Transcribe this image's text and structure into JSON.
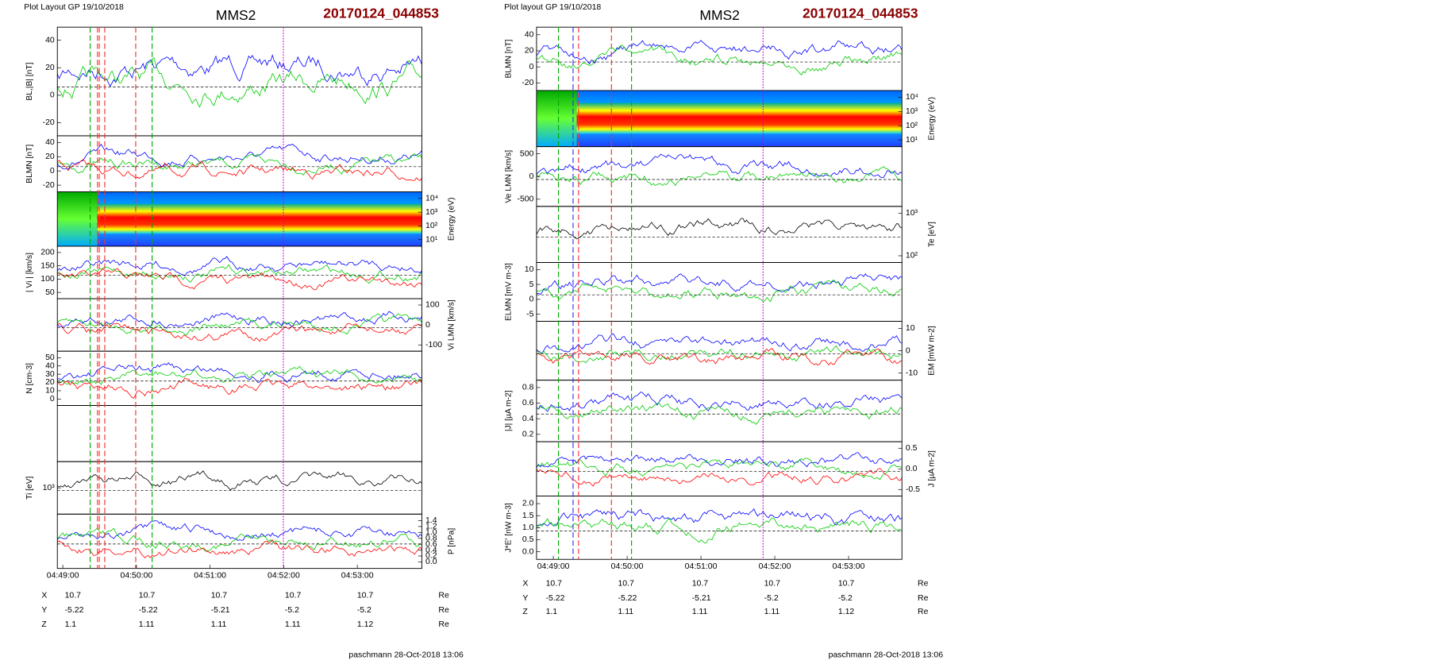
{
  "plots": [
    {
      "layout_label": "Plot Layout GP 19/10/2018",
      "spacecraft": "MMS2",
      "event_id": "20170124_044853",
      "panels": [
        {
          "ylabel": "BL,|B| [nT]",
          "side": "left",
          "yticks": [
            "40",
            "20",
            "0",
            "-20"
          ]
        },
        {
          "ylabel": "BLMN [nT]",
          "side": "left",
          "yticks": [
            "40",
            "20",
            "0",
            "-20"
          ]
        },
        {
          "ylabel": "Energy (eV)",
          "side": "right",
          "yticks": [
            "10⁴",
            "10³",
            "10²",
            "10¹"
          ]
        },
        {
          "ylabel": "| Vi | [km/s]",
          "side": "left",
          "yticks": [
            "200",
            "150",
            "100",
            "50"
          ]
        },
        {
          "ylabel": "Vi LMN [km/s]",
          "side": "right",
          "yticks": [
            "100",
            "0",
            "-100"
          ]
        },
        {
          "ylabel": "N [cm-3]",
          "side": "left",
          "yticks": [
            "50",
            "40",
            "30",
            "20",
            "10",
            "0"
          ]
        },
        {
          "ylabel": "",
          "side": "left",
          "yticks": []
        },
        {
          "ylabel": "Ti [eV]",
          "side": "left",
          "yticks": [
            "10³"
          ]
        },
        {
          "ylabel": "P [nPa]",
          "side": "right",
          "yticks": [
            "1.4",
            "1.2",
            "1.0",
            "0.8",
            "0.6",
            "0.4",
            "0.2",
            "0.0"
          ]
        }
      ],
      "time_ticks": [
        "04:49:00",
        "04:50:00",
        "04:51:00",
        "04:52:00",
        "04:53:00"
      ],
      "ephemeris": [
        {
          "label": "X",
          "values": [
            "10.7",
            "10.7",
            "10.7",
            "10.7",
            "10.7"
          ],
          "unit": "Re"
        },
        {
          "label": "Y",
          "values": [
            "-5.22",
            "-5.22",
            "-5.21",
            "-5.2",
            "-5.2"
          ],
          "unit": "Re"
        },
        {
          "label": "Z",
          "values": [
            "1.1",
            "1.11",
            "1.11",
            "1.11",
            "1.12"
          ],
          "unit": "Re"
        }
      ],
      "footer": "paschmann 28-Oct-2018 13:06"
    },
    {
      "layout_label": "Plot layout GP 19/10/2018",
      "spacecraft": "MMS2",
      "event_id": "20170124_044853",
      "panels": [
        {
          "ylabel": "BLMN [nT]",
          "side": "left",
          "yticks": [
            "40",
            "20",
            "0",
            "-20"
          ]
        },
        {
          "ylabel": "Energy (eV)",
          "side": "right",
          "yticks": [
            "10⁴",
            "10³",
            "10²",
            "10¹"
          ]
        },
        {
          "ylabel": "Ve LMN [km/s]",
          "side": "left",
          "yticks": [
            "500",
            "0",
            "-500"
          ]
        },
        {
          "ylabel": "Te [eV]",
          "side": "right",
          "yticks": [
            "10³",
            "10²"
          ]
        },
        {
          "ylabel": "ELMN [mV m-3]",
          "side": "left",
          "yticks": [
            "10",
            "5",
            "0",
            "-5"
          ]
        },
        {
          "ylabel": "EM [mW m-2]",
          "side": "right",
          "yticks": [
            "10",
            "0",
            "-10"
          ]
        },
        {
          "ylabel": "|J| [µA m-2]",
          "side": "left",
          "yticks": [
            "0.8",
            "0.6",
            "0.4",
            "0.2"
          ]
        },
        {
          "ylabel": "J [µA m-2]",
          "side": "right",
          "yticks": [
            "0.5",
            "0.0",
            "-0.5"
          ]
        },
        {
          "ylabel": "J*E' [nW m-3]",
          "side": "left",
          "yticks": [
            "2.0",
            "1.5",
            "1.0",
            "0.5",
            "0.0"
          ]
        }
      ],
      "time_ticks": [
        "04:49:00",
        "04:50:00",
        "04:51:00",
        "04:52:00",
        "04:53:00"
      ],
      "ephemeris": [
        {
          "label": "X",
          "values": [
            "10.7",
            "10.7",
            "10.7",
            "10.7",
            "10.7"
          ],
          "unit": "Re"
        },
        {
          "label": "Y",
          "values": [
            "-5.22",
            "-5.22",
            "-5.21",
            "-5.2",
            "-5.2"
          ],
          "unit": "Re"
        },
        {
          "label": "Z",
          "values": [
            "1.1",
            "1.11",
            "1.11",
            "1.11",
            "1.12"
          ],
          "unit": "Re"
        }
      ],
      "footer": "paschmann 28-Oct-2018 13:06"
    }
  ]
}
